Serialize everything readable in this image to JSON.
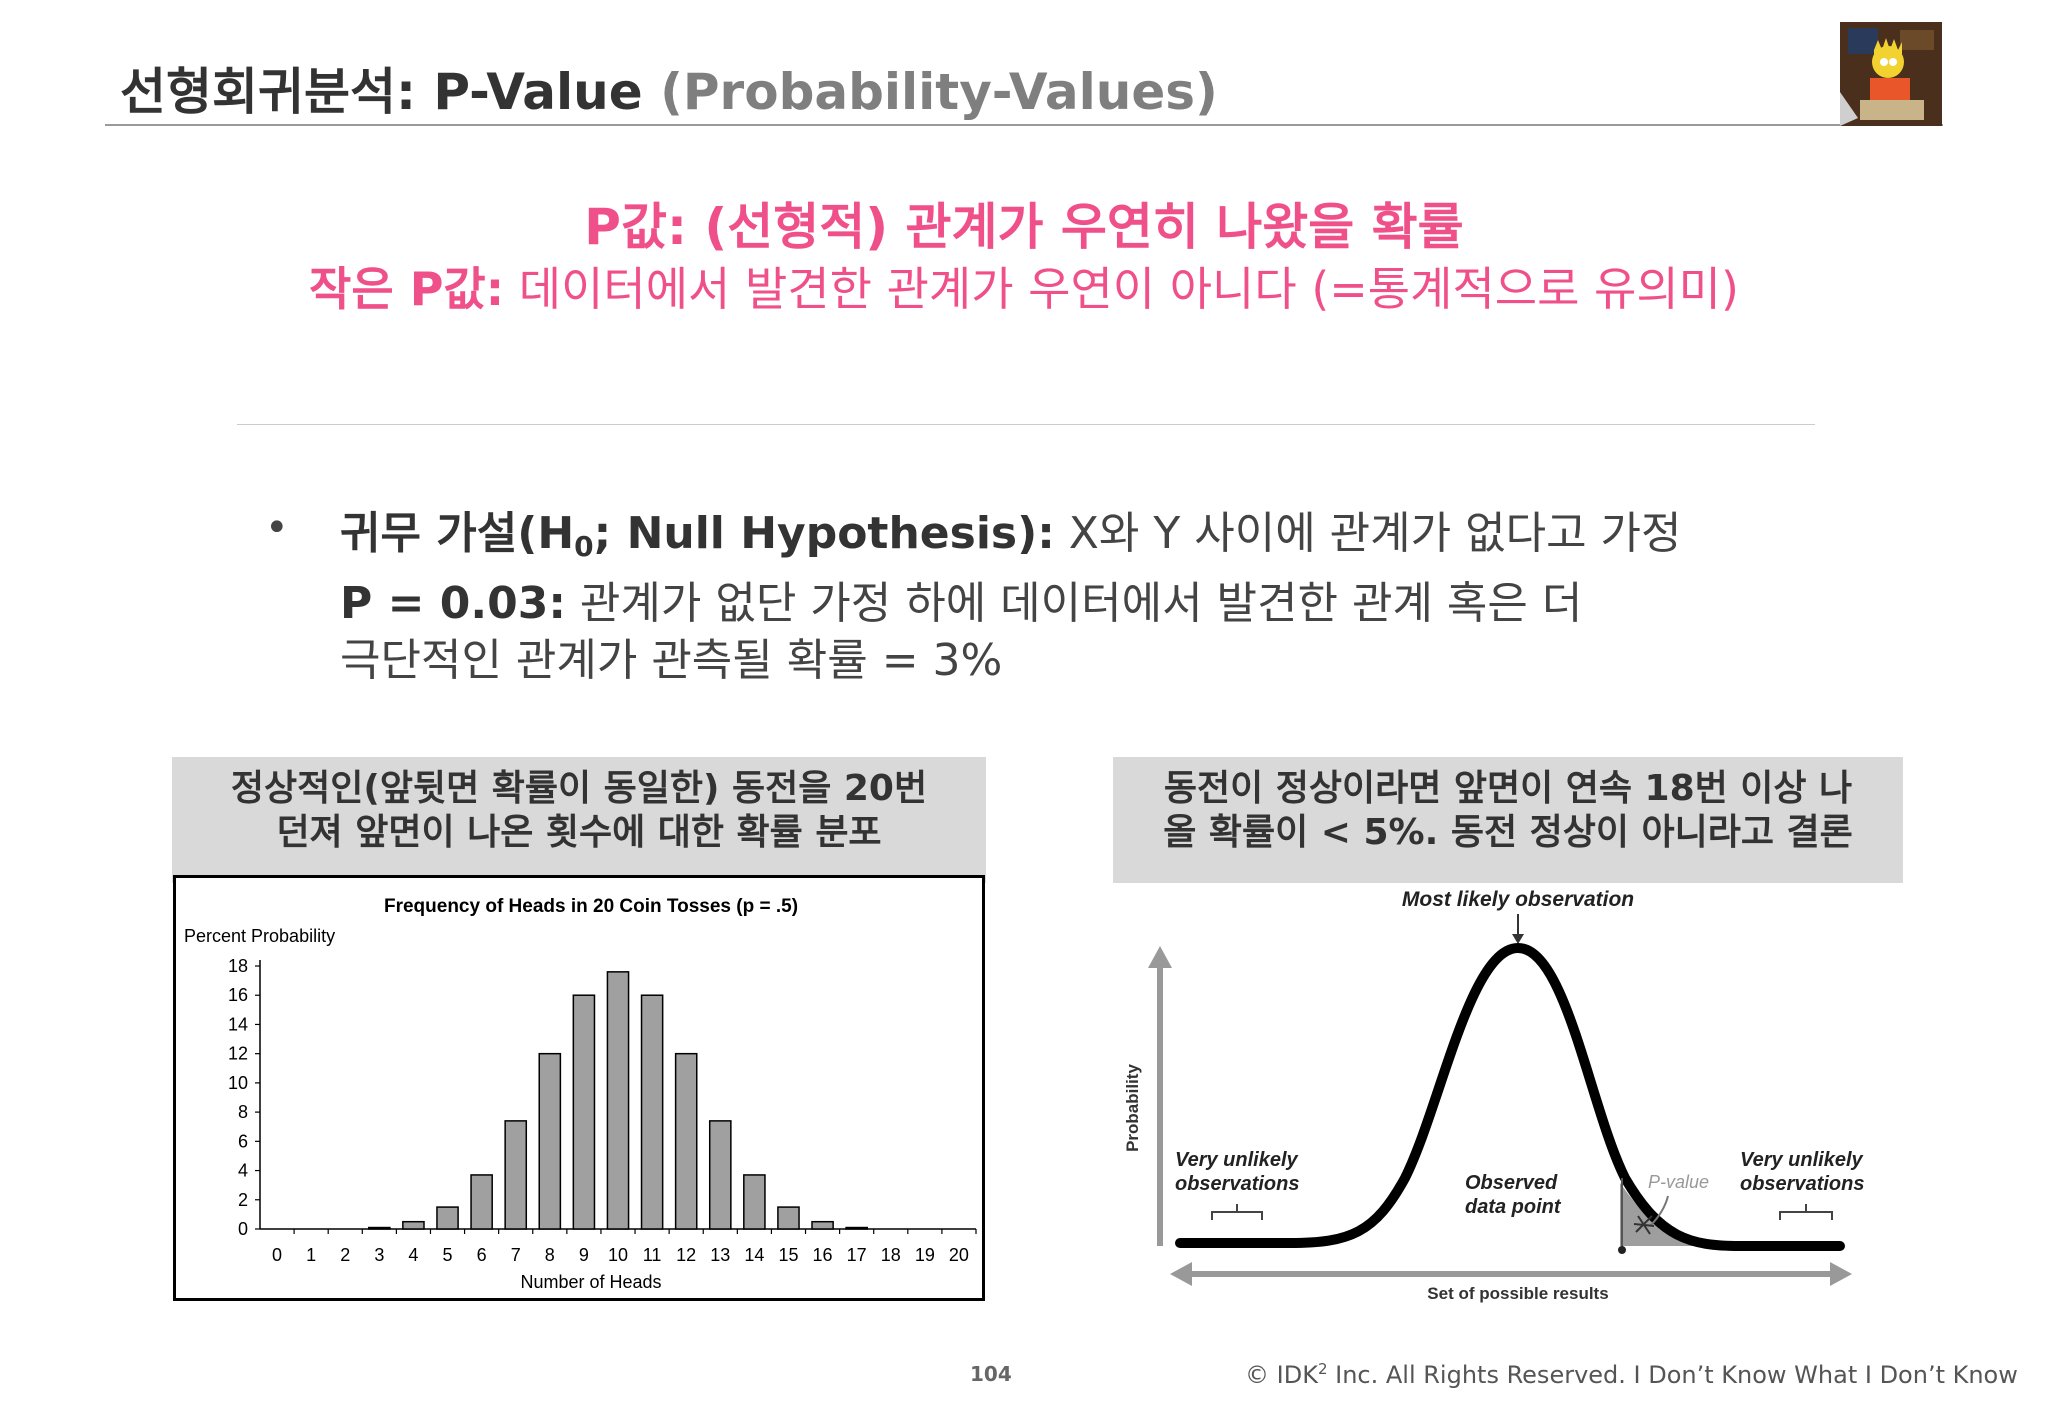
{
  "title": {
    "main": "선형회귀분석: P-Value",
    "sub": "(Probability-Values)"
  },
  "headline": {
    "line1": "P값: (선형적) 관계가 우연히 나왔을 확률",
    "line2_bold": "작은 P값:",
    "line2_rest": " 데이터에서 발견한 관계가 우연이 아니다 (=통계적으로 유의미)"
  },
  "bullet": {
    "marker": "•",
    "l1_bold_a": "귀무 가설(H",
    "l1_sub": "0",
    "l1_bold_b": "; Null Hypothesis):",
    "l1_rest": " X와 Y 사이에 관계가 없다고 가정",
    "l2_bold": "P = 0.03:",
    "l2_rest": " 관계가 없단 가정 하에 데이터에서 발견한 관계 혹은 더",
    "l3": "극단적인 관계가 관측될 확률 = 3%"
  },
  "left_caption": {
    "line1": "정상적인(앞뒷면 확률이 동일한) 동전을 20번",
    "line2": "던져 앞면이 나온 횟수에 대한 확률 분포"
  },
  "right_caption": {
    "line1": "동전이 정상이라면 앞면이 연속 18번 이상 나",
    "line2": "올 확률이 < 5%. 동전 정상이 아니라고 결론"
  },
  "chart_data": {
    "type": "bar",
    "title": "Frequency of Heads in 20 Coin Tosses (p = .5)",
    "ylabel": "Percent Probability",
    "xlabel": "Number of Heads",
    "categories": [
      "0",
      "1",
      "2",
      "3",
      "4",
      "5",
      "6",
      "7",
      "8",
      "9",
      "10",
      "11",
      "12",
      "13",
      "14",
      "15",
      "16",
      "17",
      "18",
      "19",
      "20"
    ],
    "values": [
      0,
      0,
      0,
      0.1,
      0.5,
      1.5,
      3.7,
      7.4,
      12.0,
      16.0,
      17.6,
      16.0,
      12.0,
      7.4,
      3.7,
      1.5,
      0.5,
      0.1,
      0,
      0,
      0
    ],
    "yticks": [
      0,
      2,
      4,
      6,
      8,
      10,
      12,
      14,
      16,
      18
    ],
    "ylim": [
      0,
      18
    ],
    "bar_color": "#a0a0a0"
  },
  "pvalue_diagram": {
    "most_likely": "Most likely observation",
    "probability": "Probability",
    "very_unlikely_left_1": "Very unlikely",
    "very_unlikely_left_2": "observations",
    "very_unlikely_right_1": "Very unlikely",
    "very_unlikely_right_2": "observations",
    "observed_1": "Observed",
    "observed_2": "data point",
    "pvalue": "P-value",
    "set_results": "Set of possible results"
  },
  "footer": {
    "page": "104",
    "copyright_a": "© IDK",
    "copyright_sup": "2",
    "copyright_b": " Inc. All Rights Reserved.  I Don’t Know What I Don’t Know"
  }
}
